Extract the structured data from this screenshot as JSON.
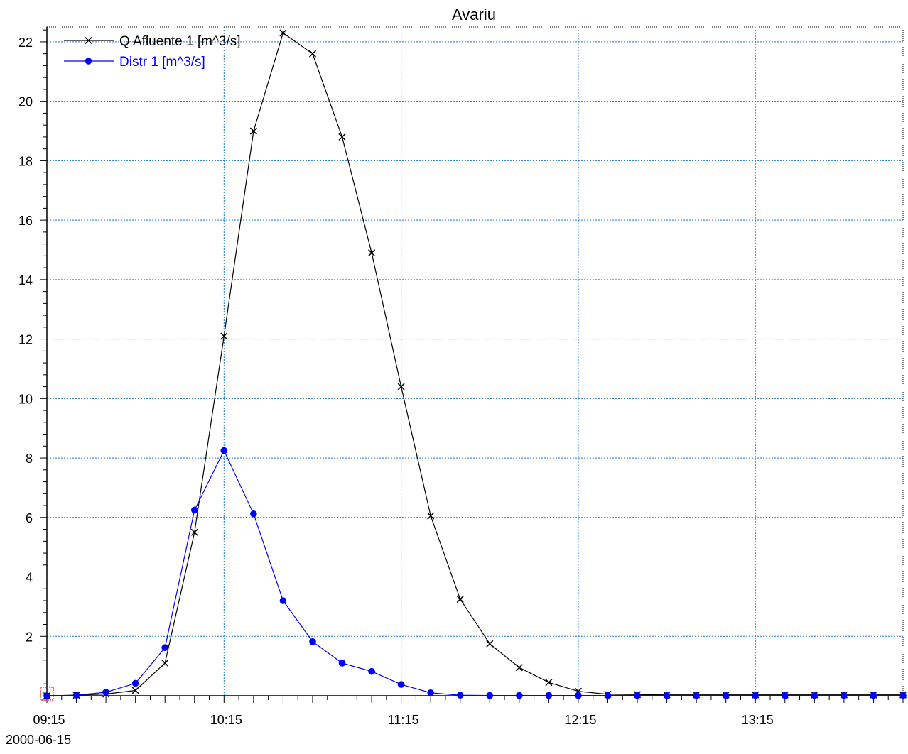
{
  "chart_data": {
    "type": "line",
    "title": "Avariu",
    "xlabel": "",
    "ylabel": "",
    "date_label": "2000-06-15",
    "x": [
      "09:15",
      "09:25",
      "09:35",
      "09:45",
      "09:55",
      "10:05",
      "10:15",
      "10:25",
      "10:35",
      "10:45",
      "10:55",
      "11:05",
      "11:15",
      "11:25",
      "11:35",
      "11:45",
      "11:55",
      "12:05",
      "12:15",
      "12:25",
      "12:35",
      "12:45",
      "12:55",
      "13:05",
      "13:15",
      "13:25",
      "13:35",
      "13:45",
      "13:55",
      "14:05"
    ],
    "x_tick_labels": [
      "09:15",
      "10:15",
      "11:15",
      "12:15",
      "13:15"
    ],
    "y_tick_labels": [
      "2",
      "4",
      "6",
      "8",
      "10",
      "12",
      "14",
      "16",
      "18",
      "20",
      "22"
    ],
    "ylim": [
      0,
      22.5
    ],
    "grid": true,
    "legend_position": "top-left",
    "series": [
      {
        "name": "Q Afluente 1 [m^3/s]",
        "color": "#000000",
        "marker": "x",
        "values": [
          0,
          0.02,
          0.06,
          0.18,
          1.1,
          5.5,
          12.1,
          19.0,
          22.3,
          21.6,
          18.8,
          14.9,
          10.4,
          6.05,
          3.25,
          1.75,
          0.95,
          0.45,
          0.15,
          0.05,
          0.04,
          0.03,
          0.03,
          0.03,
          0.03,
          0.03,
          0.03,
          0.03,
          0.03,
          0.03
        ]
      },
      {
        "name": "Distr 1 [m^3/s]",
        "color": "#0000ff",
        "marker": "circle",
        "values": [
          0,
          0.02,
          0.12,
          0.42,
          1.62,
          6.25,
          8.25,
          6.12,
          3.2,
          1.82,
          1.1,
          0.82,
          0.38,
          0.1,
          0.02,
          0.01,
          0.01,
          0.01,
          0.01,
          0.01,
          0.01,
          0.01,
          0.01,
          0.01,
          0.01,
          0.01,
          0.01,
          0.01,
          0.01,
          0.01
        ]
      }
    ]
  }
}
